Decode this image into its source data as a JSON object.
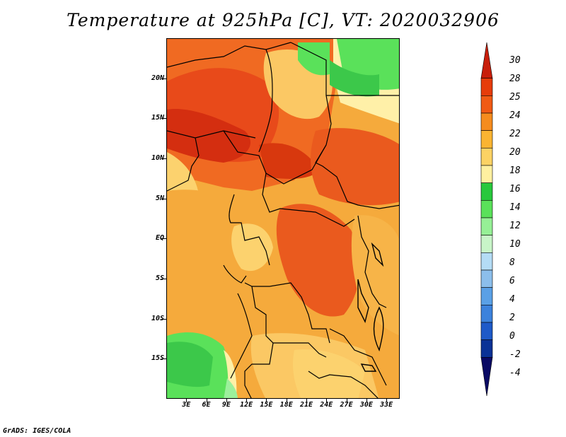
{
  "title": "Temperature at 925hPa [C], VT: 2020032906",
  "footer": "GrADS: IGES/COLA",
  "axes": {
    "y_ticks": [
      {
        "label": "20N",
        "lat": 20
      },
      {
        "label": "15N",
        "lat": 15
      },
      {
        "label": "10N",
        "lat": 10
      },
      {
        "label": "5N",
        "lat": 5
      },
      {
        "label": "EQ",
        "lat": 0
      },
      {
        "label": "5S",
        "lat": -5
      },
      {
        "label": "10S",
        "lat": -10
      },
      {
        "label": "15S",
        "lat": -15
      }
    ],
    "x_ticks": [
      {
        "label": "3E",
        "lon": 3
      },
      {
        "label": "6E",
        "lon": 6
      },
      {
        "label": "9E",
        "lon": 9
      },
      {
        "label": "12E",
        "lon": 12
      },
      {
        "label": "15E",
        "lon": 15
      },
      {
        "label": "18E",
        "lon": 18
      },
      {
        "label": "21E",
        "lon": 21
      },
      {
        "label": "24E",
        "lon": 24
      },
      {
        "label": "27E",
        "lon": 27
      },
      {
        "label": "30E",
        "lon": 30
      },
      {
        "label": "33E",
        "lon": 33
      }
    ],
    "lon_range": [
      0,
      35
    ],
    "lat_range": [
      -20,
      25
    ]
  },
  "colorbar": {
    "labels": [
      "30",
      "28",
      "25",
      "24",
      "22",
      "20",
      "18",
      "16",
      "14",
      "12",
      "10",
      "8",
      "6",
      "4",
      "2",
      "0",
      "-2",
      "-4"
    ],
    "colors": [
      "#c81e0a",
      "#e63c0a",
      "#f05a14",
      "#f58c1e",
      "#fab432",
      "#fcd264",
      "#fff0a0",
      "#28c83c",
      "#5ae15a",
      "#96f096",
      "#c8f5c8",
      "#b4dcf5",
      "#8cbeeb",
      "#5aa0e6",
      "#3c82dc",
      "#1e5ac8",
      "#0a3296",
      "#0a0a64"
    ]
  },
  "legend_palette": {
    "hot": "#d22a0c",
    "warm_red": "#e8441a",
    "orange_red": "#f06420",
    "orange": "#f5962a",
    "light_orange": "#fab43c",
    "pale": "#fcd26e",
    "cream": "#fff0a8",
    "green_dark": "#32c846",
    "green": "#5ae15a",
    "green_light": "#9cf09c"
  }
}
